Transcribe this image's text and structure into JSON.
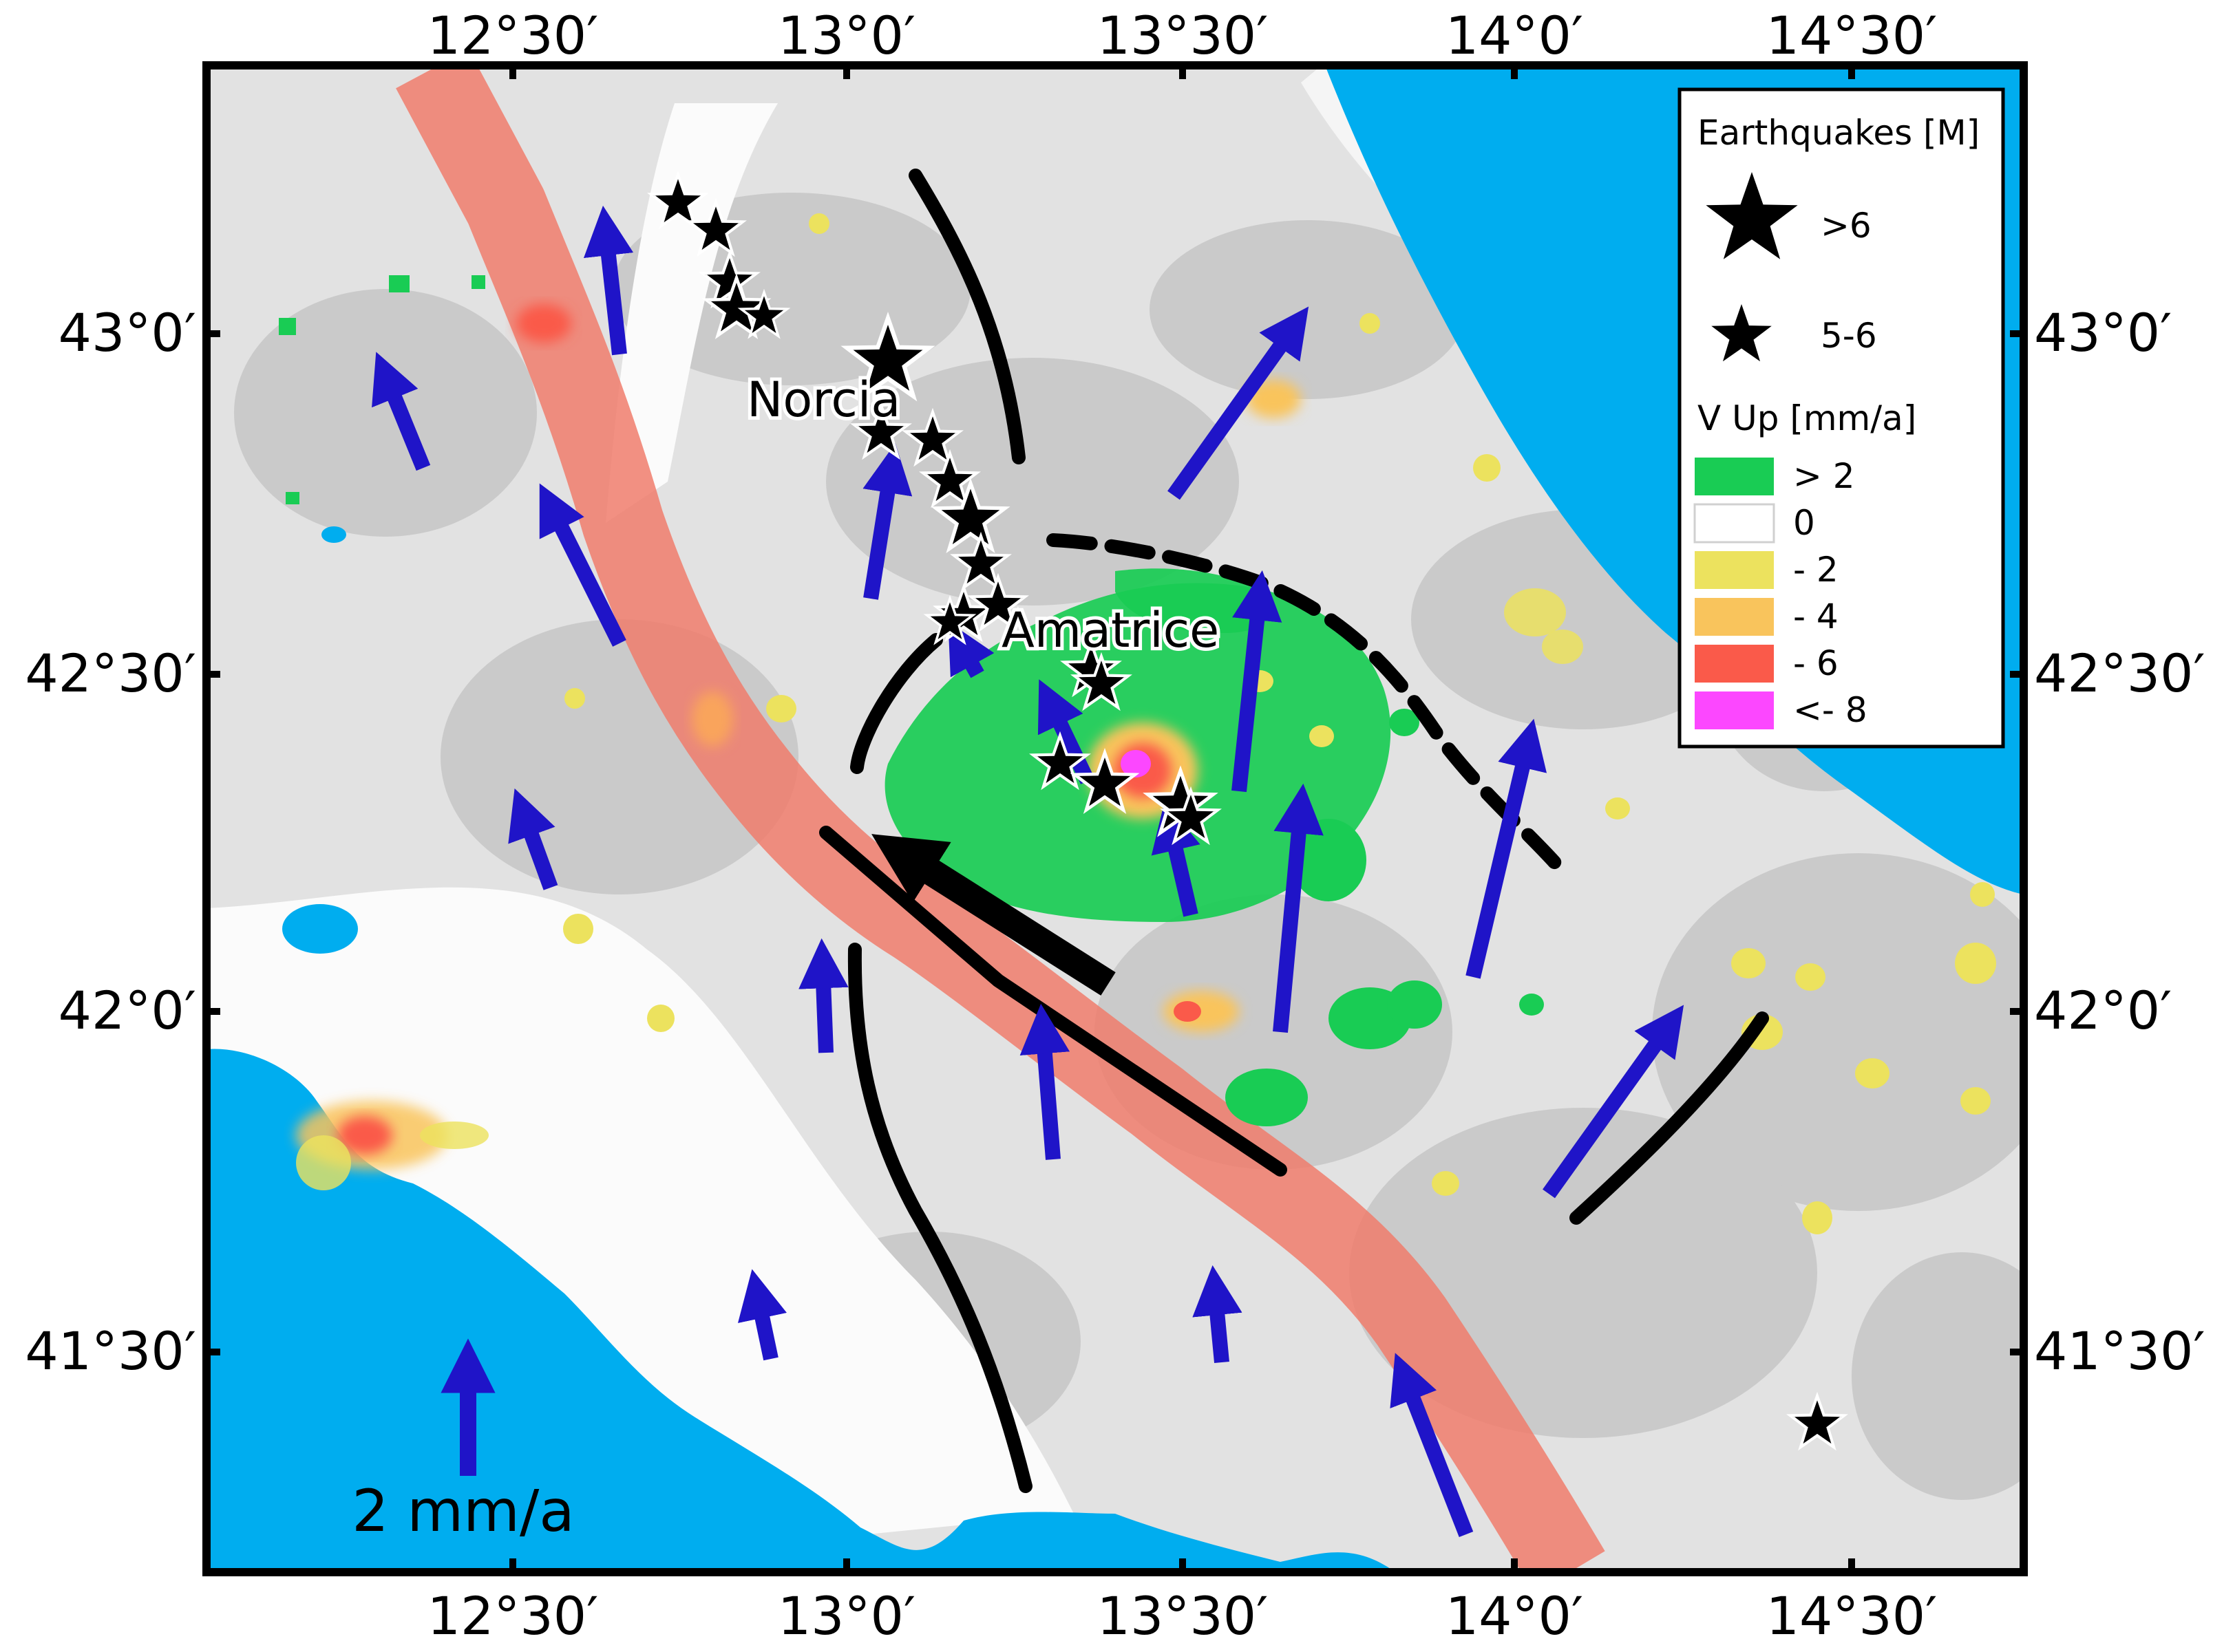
{
  "map": {
    "lon_labels": [
      "12°30′",
      "13°0′",
      "13°30′",
      "14°0′",
      "14°30′"
    ],
    "lat_labels": [
      "43°0′",
      "42°30′",
      "42°0′",
      "41°30′"
    ],
    "places": [
      {
        "key": "norcia",
        "name": "Norcia"
      },
      {
        "key": "amatrice",
        "name": "Amatrice"
      }
    ],
    "colors": {
      "sea": "#00adef",
      "land": "#e2e2e2",
      "fault_zone": "#f07c6c",
      "velocity_arrow": "#1f14c8",
      "fault": "#000000"
    }
  },
  "legend": {
    "eq_title": "Earthquakes [M]",
    "eq_large": ">6",
    "eq_medium": "5-6",
    "v_title": "V Up [mm/a]",
    "classes": [
      {
        "label": "> 2",
        "color": "#19cc54"
      },
      {
        "label": "0",
        "color": "#ffffff"
      },
      {
        "label": "- 2",
        "color": "#ece25e"
      },
      {
        "label": "- 4",
        "color": "#f9c45c"
      },
      {
        "label": "- 6",
        "color": "#fa5a4a"
      },
      {
        "label": "<- 8",
        "color": "#fc47ff"
      }
    ]
  },
  "scale": {
    "label": "2 mm/a",
    "value_mm_per_year": 2
  }
}
